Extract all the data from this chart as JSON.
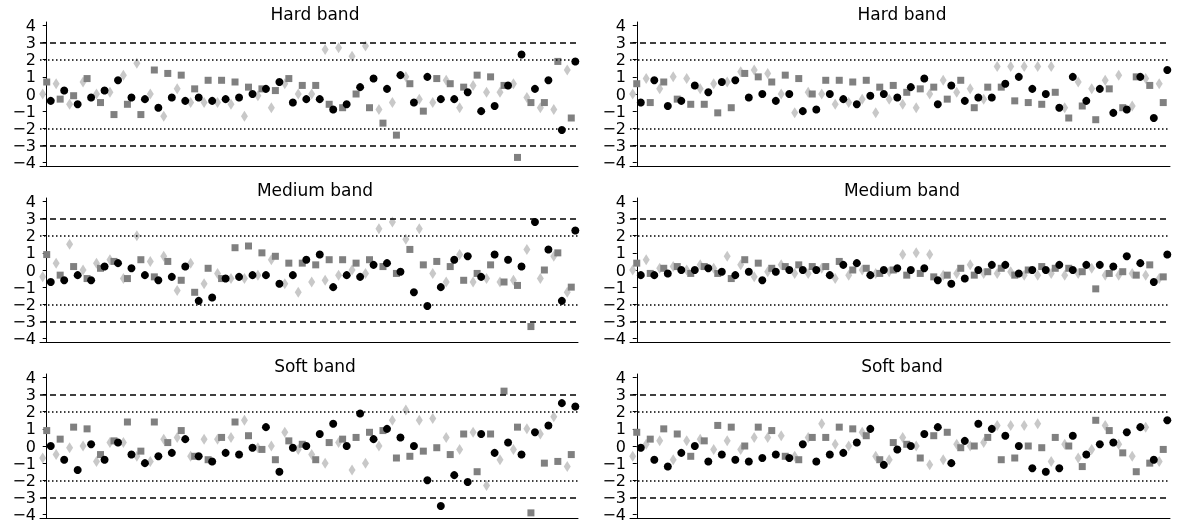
{
  "chart_data": [
    {
      "type": "scatter",
      "title": "Hard band",
      "categories": [
        null,
        null,
        null,
        null,
        null,
        null,
        null,
        null,
        null,
        null,
        null,
        null,
        null,
        null,
        null,
        null,
        null,
        null,
        null,
        null,
        null,
        null,
        null,
        null,
        null,
        null,
        null,
        null,
        null,
        null,
        null,
        null,
        null,
        null,
        null,
        null,
        null,
        null,
        null,
        null
      ],
      "ylim": [
        -4.2,
        4.2
      ],
      "yticks": [
        {
          "value": -4,
          "label": "−4"
        },
        {
          "value": -3,
          "label": "−3"
        },
        {
          "value": -2,
          "label": "−2"
        },
        {
          "value": -1,
          "label": "−1"
        },
        0,
        1,
        2,
        3,
        4
      ],
      "grid": false,
      "tick_labels": "y",
      "ref_lines": [
        {
          "axis": "y",
          "value": 3,
          "line_style": "dashed",
          "color": "#000000"
        },
        {
          "axis": "y",
          "value": 2,
          "line_style": "dotted",
          "color": "#000000"
        },
        {
          "axis": "y",
          "value": -2,
          "line_style": "dotted",
          "color": "#000000"
        },
        {
          "axis": "y",
          "value": -3,
          "line_style": "dashed",
          "color": "#000000"
        }
      ],
      "series": [
        {
          "color": "#c8c8c8",
          "marker": "diamond",
          "values": [
            0.0,
            0.6,
            -0.6,
            0.7,
            0.0,
            0.1,
            1.1,
            1.8,
            0.0,
            -1.3,
            0.3,
            -0.5,
            -0.5,
            -0.5,
            -0.6,
            -1.3,
            -0.1,
            -0.8,
            0.6,
            0.0,
            0.0,
            2.6,
            2.7,
            2.2,
            2.8,
            -0.9,
            -0.5,
            1.0,
            -0.3,
            -0.5,
            0.8,
            -0.8,
            0.5,
            0.1,
            0.1,
            0.6,
            -0.2,
            -0.8,
            -0.9,
            1.4
          ]
        },
        {
          "color": "#808080",
          "marker": "square",
          "values": [
            0.7,
            -0.3,
            -0.1,
            0.9,
            -0.5,
            -1.2,
            -0.6,
            -1.2,
            1.4,
            1.2,
            1.1,
            0.3,
            0.8,
            0.8,
            0.7,
            0.4,
            0.3,
            0.2,
            0.9,
            0.5,
            0.5,
            -0.6,
            -0.8,
            0.0,
            -0.8,
            -1.7,
            -2.4,
            0.6,
            -1.0,
            0.9,
            0.6,
            0.4,
            1.1,
            1.0,
            0.5,
            -3.7,
            -0.5,
            -0.5,
            1.9,
            -1.4
          ]
        },
        {
          "color": "#000000",
          "marker": "circle",
          "values": [
            -0.4,
            0.2,
            -0.6,
            -0.2,
            0.2,
            0.8,
            -0.2,
            -0.3,
            -0.8,
            -0.2,
            -0.4,
            -0.2,
            -0.4,
            -0.3,
            -0.2,
            0.0,
            0.3,
            0.7,
            -0.5,
            -0.3,
            -0.3,
            -0.9,
            -0.6,
            0.4,
            0.9,
            0.3,
            1.1,
            -0.5,
            1.0,
            -0.3,
            -0.3,
            0.1,
            -1.0,
            -0.7,
            0.5,
            2.3,
            0.3,
            0.8,
            -2.1,
            1.9
          ]
        }
      ]
    },
    {
      "type": "scatter",
      "title": "Hard band",
      "categories": [
        null,
        null,
        null,
        null,
        null,
        null,
        null,
        null,
        null,
        null,
        null,
        null,
        null,
        null,
        null,
        null,
        null,
        null,
        null,
        null,
        null,
        null,
        null,
        null,
        null,
        null,
        null,
        null,
        null,
        null,
        null,
        null,
        null,
        null,
        null,
        null,
        null,
        null,
        null,
        null
      ],
      "ylim": [
        -4.2,
        4.2
      ],
      "yticks": [
        {
          "value": -4,
          "label": "−4"
        },
        {
          "value": -3,
          "label": "−3"
        },
        {
          "value": -2,
          "label": "−2"
        },
        {
          "value": -1,
          "label": "−1"
        },
        0,
        1,
        2,
        3,
        4
      ],
      "grid": false,
      "tick_labels": "y",
      "ref_lines": [
        {
          "axis": "y",
          "value": 3,
          "line_style": "dashed",
          "color": "#000000"
        },
        {
          "axis": "y",
          "value": 2,
          "line_style": "dotted",
          "color": "#000000"
        },
        {
          "axis": "y",
          "value": -2,
          "line_style": "dotted",
          "color": "#000000"
        },
        {
          "axis": "y",
          "value": -3,
          "line_style": "dashed",
          "color": "#000000"
        }
      ],
      "series": [
        {
          "color": "#c8c8c8",
          "marker": "diamond",
          "values": [
            0.0,
            0.9,
            0.3,
            1.0,
            0.9,
            0.3,
            0.6,
            0.7,
            1.3,
            1.4,
            1.2,
            0.0,
            -1.1,
            0.1,
            0.0,
            -0.6,
            -0.5,
            -0.3,
            -1.1,
            -0.3,
            -0.6,
            -0.8,
            0.0,
            0.8,
            0.1,
            0.3,
            -0.3,
            1.6,
            1.6,
            1.6,
            1.6,
            1.6,
            -0.8,
            0.7,
            0.3,
            0.8,
            1.1,
            -0.7,
            0.9,
            0.6
          ]
        },
        {
          "color": "#808080",
          "marker": "square",
          "values": [
            0.6,
            -0.5,
            0.7,
            -0.3,
            -0.6,
            -0.6,
            -1.1,
            -0.8,
            1.2,
            1.0,
            0.7,
            1.1,
            0.9,
            0.0,
            0.8,
            0.8,
            0.7,
            0.8,
            0.4,
            0.5,
            0.1,
            0.3,
            0.4,
            -0.3,
            0.8,
            -0.8,
            0.4,
            0.4,
            -0.4,
            -0.5,
            -0.6,
            0.1,
            -1.4,
            -0.7,
            -1.5,
            0.3,
            -0.8,
            1.0,
            0.5,
            -0.5
          ]
        },
        {
          "color": "#000000",
          "marker": "circle",
          "values": [
            -0.5,
            0.8,
            -0.7,
            -0.4,
            0.5,
            0.1,
            0.7,
            0.8,
            -0.2,
            0.0,
            -0.4,
            0.0,
            -1.0,
            -0.9,
            0.0,
            -0.3,
            -0.6,
            -0.1,
            0.0,
            -0.2,
            0.4,
            0.9,
            -0.6,
            0.5,
            -0.4,
            -0.2,
            -0.2,
            0.6,
            1.0,
            0.3,
            0.0,
            -0.8,
            1.0,
            -0.4,
            0.3,
            -1.1,
            -0.9,
            1.0,
            -1.4,
            1.4
          ]
        }
      ]
    },
    {
      "type": "scatter",
      "title": "Medium band",
      "categories": [
        null,
        null,
        null,
        null,
        null,
        null,
        null,
        null,
        null,
        null,
        null,
        null,
        null,
        null,
        null,
        null,
        null,
        null,
        null,
        null,
        null,
        null,
        null,
        null,
        null,
        null,
        null,
        null,
        null,
        null,
        null,
        null,
        null,
        null,
        null,
        null,
        null,
        null,
        null,
        null
      ],
      "ylim": [
        -4.2,
        4.2
      ],
      "yticks": [
        {
          "value": -4,
          "label": "−4"
        },
        {
          "value": -3,
          "label": "−3"
        },
        {
          "value": -2,
          "label": "−2"
        },
        {
          "value": -1,
          "label": "−1"
        },
        0,
        1,
        2,
        3,
        4
      ],
      "grid": false,
      "tick_labels": "y",
      "ref_lines": [
        {
          "axis": "y",
          "value": 3,
          "line_style": "dashed",
          "color": "#000000"
        },
        {
          "axis": "y",
          "value": 2,
          "line_style": "dotted",
          "color": "#000000"
        },
        {
          "axis": "y",
          "value": -2,
          "line_style": "dotted",
          "color": "#000000"
        },
        {
          "axis": "y",
          "value": -3,
          "line_style": "dashed",
          "color": "#000000"
        }
      ],
      "series": [
        {
          "color": "#c8c8c8",
          "marker": "diamond",
          "values": [
            -0.4,
            0.4,
            1.5,
            0.0,
            0.4,
            0.6,
            -0.5,
            2.0,
            0.5,
            0.8,
            -1.2,
            0.4,
            -0.8,
            -0.2,
            -0.5,
            -0.5,
            -0.3,
            0.6,
            -0.8,
            -1.3,
            -0.7,
            -0.6,
            -0.3,
            0.0,
            -0.2,
            2.4,
            2.8,
            1.8,
            2.4,
            -0.2,
            -0.7,
            0.9,
            -0.7,
            -0.5,
            -0.7,
            -0.6,
            1.2,
            -0.5,
            0.8,
            -1.3
          ]
        },
        {
          "color": "#808080",
          "marker": "square",
          "values": [
            0.9,
            -0.3,
            0.2,
            -0.5,
            0.1,
            0.5,
            -0.5,
            0.6,
            -0.4,
            0.5,
            -0.6,
            -1.3,
            0.1,
            -0.5,
            1.3,
            1.4,
            1.0,
            0.8,
            0.4,
            0.4,
            0.3,
            0.6,
            0.6,
            0.4,
            0.6,
            0.2,
            -0.2,
            1.2,
            0.3,
            0.5,
            0.2,
            -0.6,
            -0.2,
            0.3,
            -0.7,
            -0.9,
            -3.3,
            0.0,
            1.0,
            -1.0
          ]
        },
        {
          "color": "#000000",
          "marker": "circle",
          "values": [
            -0.7,
            -0.6,
            -0.3,
            -0.6,
            0.2,
            0.4,
            0.1,
            -0.3,
            -0.6,
            -0.4,
            0.2,
            -1.8,
            -1.6,
            -0.5,
            -0.4,
            -0.3,
            -0.3,
            -0.8,
            -0.3,
            0.6,
            0.9,
            -1.0,
            -0.3,
            -0.4,
            0.3,
            0.4,
            -0.1,
            -1.3,
            -2.1,
            -1.0,
            0.6,
            0.8,
            -0.4,
            0.9,
            0.6,
            0.2,
            2.8,
            1.2,
            -1.8,
            2.3
          ]
        }
      ]
    },
    {
      "type": "scatter",
      "title": "Medium band",
      "categories": [
        null,
        null,
        null,
        null,
        null,
        null,
        null,
        null,
        null,
        null,
        null,
        null,
        null,
        null,
        null,
        null,
        null,
        null,
        null,
        null,
        null,
        null,
        null,
        null,
        null,
        null,
        null,
        null,
        null,
        null,
        null,
        null,
        null,
        null,
        null,
        null,
        null,
        null,
        null,
        null
      ],
      "ylim": [
        -4.2,
        4.2
      ],
      "yticks": [
        {
          "value": -4,
          "label": "−4"
        },
        {
          "value": -3,
          "label": "−3"
        },
        {
          "value": -2,
          "label": "−2"
        },
        {
          "value": -1,
          "label": "−1"
        },
        0,
        1,
        2,
        3,
        4
      ],
      "grid": false,
      "tick_labels": "y",
      "ref_lines": [
        {
          "axis": "y",
          "value": 3,
          "line_style": "dashed",
          "color": "#000000"
        },
        {
          "axis": "y",
          "value": 2,
          "line_style": "dotted",
          "color": "#000000"
        },
        {
          "axis": "y",
          "value": -2,
          "line_style": "dotted",
          "color": "#000000"
        },
        {
          "axis": "y",
          "value": -3,
          "line_style": "dashed",
          "color": "#000000"
        }
      ],
      "series": [
        {
          "color": "#c8c8c8",
          "marker": "diamond",
          "values": [
            0.0,
            0.6,
            0.1,
            0.2,
            0.0,
            0.3,
            0.1,
            0.8,
            0.3,
            -0.4,
            -0.1,
            0.3,
            -0.2,
            -0.2,
            0.1,
            -0.5,
            -0.3,
            0.0,
            -0.2,
            -0.1,
            0.9,
            1.0,
            0.9,
            -0.3,
            -0.2,
            0.3,
            -0.2,
            -0.2,
            -0.1,
            -0.3,
            -0.3,
            -0.2,
            -0.3,
            -0.2,
            0.1,
            -0.3,
            -0.3,
            -0.2,
            -0.3,
            -0.5
          ]
        },
        {
          "color": "#808080",
          "marker": "square",
          "values": [
            0.4,
            -0.2,
            0.1,
            0.2,
            -0.2,
            0.2,
            -0.2,
            -0.5,
            0.6,
            0.4,
            0.1,
            0.2,
            0.3,
            0.2,
            0.2,
            0.5,
            0.0,
            0.1,
            -0.2,
            0.0,
            -0.3,
            -0.2,
            -0.4,
            -0.3,
            0.1,
            -0.3,
            -0.1,
            0.1,
            -0.3,
            0.0,
            0.2,
            0.1,
            0.1,
            -0.1,
            -1.1,
            -0.2,
            -0.1,
            -0.3,
            0.3,
            -0.4
          ]
        },
        {
          "color": "#000000",
          "marker": "circle",
          "values": [
            -0.3,
            -0.3,
            -0.2,
            0.0,
            0.0,
            0.1,
            -0.1,
            -0.3,
            -0.1,
            -0.6,
            -0.1,
            0.0,
            0.0,
            0.0,
            -0.3,
            0.3,
            0.4,
            -0.3,
            0.0,
            0.1,
            0.0,
            0.1,
            -0.6,
            -0.8,
            -0.5,
            0.0,
            0.3,
            0.3,
            -0.2,
            0.0,
            0.0,
            0.3,
            0.0,
            0.3,
            0.3,
            0.2,
            0.8,
            0.4,
            -0.7,
            0.9
          ]
        }
      ]
    },
    {
      "type": "scatter",
      "title": "Soft band",
      "categories": [
        null,
        null,
        null,
        null,
        null,
        null,
        null,
        null,
        null,
        null,
        null,
        null,
        null,
        null,
        null,
        null,
        null,
        null,
        null,
        null,
        null,
        null,
        null,
        null,
        null,
        null,
        null,
        null,
        null,
        null,
        null,
        null,
        null,
        null,
        null,
        null,
        null,
        null,
        null,
        null
      ],
      "ylim": [
        -4.2,
        4.2
      ],
      "yticks": [
        {
          "value": -4,
          "label": "−4"
        },
        {
          "value": -3,
          "label": "−3"
        },
        {
          "value": -2,
          "label": "−2"
        },
        {
          "value": -1,
          "label": "−1"
        },
        0,
        1,
        2,
        3,
        4
      ],
      "grid": false,
      "tick_labels": "y",
      "ref_lines": [
        {
          "axis": "y",
          "value": 3,
          "line_style": "dashed",
          "color": "#000000"
        },
        {
          "axis": "y",
          "value": 2,
          "line_style": "dotted",
          "color": "#000000"
        },
        {
          "axis": "y",
          "value": -2,
          "line_style": "dotted",
          "color": "#000000"
        },
        {
          "axis": "y",
          "value": -3,
          "line_style": "dashed",
          "color": "#000000"
        }
      ],
      "series": [
        {
          "color": "#c8c8c8",
          "marker": "diamond",
          "values": [
            -0.7,
            -0.5,
            -0.1,
            0.0,
            -0.9,
            0.2,
            0.2,
            -0.6,
            -0.9,
            0.4,
            0.5,
            -0.6,
            0.4,
            0.4,
            0.5,
            1.5,
            -0.1,
            0.0,
            0.8,
            -0.2,
            -0.5,
            -1.0,
            0.2,
            -1.4,
            -1.0,
            0.0,
            1.5,
            2.1,
            1.5,
            1.6,
            0.5,
            -0.2,
            0.8,
            -2.3,
            -0.8,
            -0.2,
            1.0,
            0.7,
            1.7,
            -1.2
          ]
        },
        {
          "color": "#808080",
          "marker": "square",
          "values": [
            0.9,
            0.4,
            1.1,
            1.0,
            -0.5,
            0.3,
            1.4,
            -0.3,
            1.4,
            0.2,
            0.9,
            -0.6,
            -0.8,
            0.5,
            1.4,
            0.6,
            -0.2,
            -0.8,
            0.3,
            0.1,
            -0.8,
            0.2,
            0.4,
            0.5,
            0.8,
            0.9,
            -0.7,
            -0.6,
            -0.3,
            -0.1,
            -0.5,
            0.7,
            -1.5,
            0.7,
            3.2,
            1.1,
            -3.9,
            -1.0,
            -0.9,
            -0.5
          ]
        },
        {
          "color": "#000000",
          "marker": "circle",
          "values": [
            0.0,
            -0.8,
            -1.4,
            0.1,
            -0.8,
            0.2,
            -0.5,
            -1.0,
            -0.6,
            -0.4,
            0.4,
            -0.6,
            -0.9,
            -0.4,
            -0.5,
            -0.1,
            1.1,
            -1.5,
            -0.1,
            0.0,
            0.7,
            1.3,
            0.0,
            1.9,
            0.4,
            1.0,
            0.5,
            0.0,
            -2.0,
            -3.5,
            -1.7,
            -2.1,
            0.7,
            -0.4,
            0.2,
            -0.5,
            0.8,
            1.2,
            2.5,
            2.3
          ]
        }
      ]
    },
    {
      "type": "scatter",
      "title": "Soft band",
      "categories": [
        null,
        null,
        null,
        null,
        null,
        null,
        null,
        null,
        null,
        null,
        null,
        null,
        null,
        null,
        null,
        null,
        null,
        null,
        null,
        null,
        null,
        null,
        null,
        null,
        null,
        null,
        null,
        null,
        null,
        null,
        null,
        null,
        null,
        null,
        null,
        null,
        null,
        null,
        null,
        null
      ],
      "ylim": [
        -4.2,
        4.2
      ],
      "yticks": [
        {
          "value": -4,
          "label": "−4"
        },
        {
          "value": -3,
          "label": "−3"
        },
        {
          "value": -2,
          "label": "−2"
        },
        {
          "value": -1,
          "label": "−1"
        },
        0,
        1,
        2,
        3,
        4
      ],
      "grid": false,
      "tick_labels": "y",
      "ref_lines": [
        {
          "axis": "y",
          "value": 3,
          "line_style": "dashed",
          "color": "#000000"
        },
        {
          "axis": "y",
          "value": 2,
          "line_style": "dotted",
          "color": "#000000"
        },
        {
          "axis": "y",
          "value": -2,
          "line_style": "dotted",
          "color": "#000000"
        },
        {
          "axis": "y",
          "value": -3,
          "line_style": "dashed",
          "color": "#000000"
        }
      ],
      "series": [
        {
          "color": "#c8c8c8",
          "marker": "diamond",
          "values": [
            -0.6,
            0.1,
            0.3,
            -0.8,
            0.3,
            0.4,
            -0.2,
            0.3,
            -0.2,
            0.5,
            0.5,
            0.6,
            -0.6,
            0.5,
            1.3,
            0.1,
            0.0,
            0.8,
            -0.6,
            -0.8,
            0.5,
            0.0,
            -1.1,
            -0.8,
            0.1,
            0.0,
            0.2,
            1.2,
            1.2,
            1.2,
            1.3,
            -0.9,
            0.1,
            -0.7,
            -0.2,
            1.2,
            0.1,
            -0.6,
            1.1,
            -0.9
          ]
        },
        {
          "color": "#808080",
          "marker": "square",
          "values": [
            0.8,
            0.4,
            1.0,
            0.7,
            -0.6,
            0.3,
            1.2,
            1.1,
            0.0,
            1.1,
            0.9,
            -0.6,
            -0.8,
            0.5,
            0.5,
            1.1,
            1.0,
            0.6,
            -0.8,
            0.2,
            0.1,
            -0.7,
            0.6,
            0.8,
            -0.1,
            0.0,
            0.5,
            -0.8,
            -0.7,
            0.0,
            -0.1,
            0.5,
            0.0,
            -1.2,
            1.5,
            0.9,
            -0.4,
            -1.5,
            -1.0,
            -0.2
          ]
        },
        {
          "color": "#000000",
          "marker": "circle",
          "values": [
            -0.1,
            -0.8,
            -1.2,
            -0.4,
            0.0,
            -0.9,
            -0.5,
            -0.8,
            -0.9,
            -0.7,
            -0.5,
            -0.7,
            0.1,
            -0.9,
            -0.5,
            -0.4,
            0.2,
            1.0,
            -1.1,
            -0.2,
            0.0,
            0.7,
            1.1,
            -1.0,
            0.3,
            1.3,
            1.0,
            0.6,
            0.0,
            -1.3,
            -1.5,
            -1.3,
            0.6,
            -0.5,
            0.1,
            0.2,
            0.8,
            1.1,
            -0.8,
            1.5
          ]
        }
      ]
    }
  ]
}
